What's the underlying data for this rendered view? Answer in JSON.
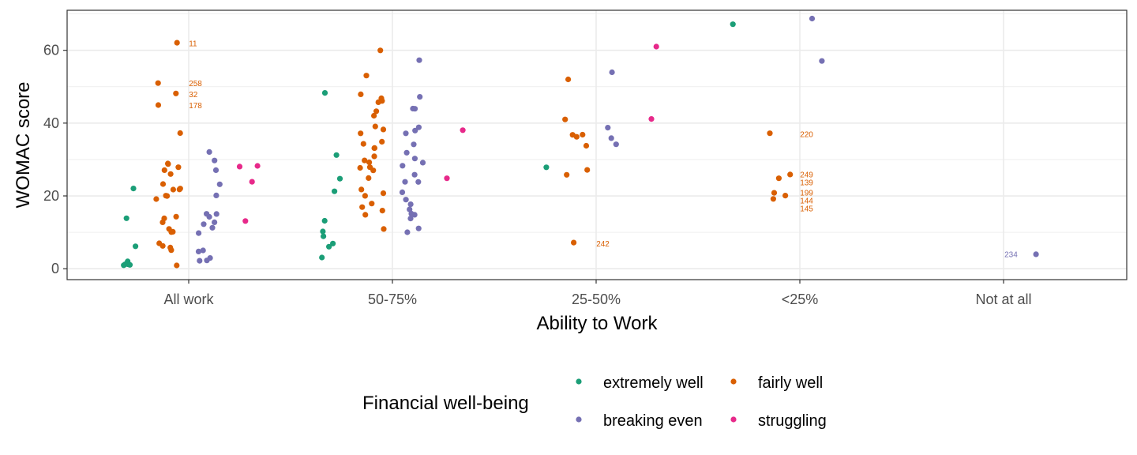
{
  "chart_data": {
    "type": "scatter",
    "xlabel": "Ability to Work",
    "ylabel": "WOMAC score",
    "categories": [
      "All work",
      "50-75%",
      "25-50%",
      "<25%",
      "Not at all"
    ],
    "ylim": [
      -3,
      71
    ],
    "yticks": [
      0,
      20,
      40,
      60
    ],
    "grid": true,
    "legend": {
      "title": "Financial well-being",
      "placement": "bottom"
    },
    "series": [
      {
        "name": "extremely well",
        "color": "#1b9e77",
        "offset": -0.3,
        "points": [
          {
            "x": "All work",
            "y": 22
          },
          {
            "x": "All work",
            "y": 14
          },
          {
            "x": "All work",
            "y": 6
          },
          {
            "x": "All work",
            "y": 2
          },
          {
            "x": "All work",
            "y": 1.5
          },
          {
            "x": "All work",
            "y": 1
          },
          {
            "x": "All work",
            "y": 1
          },
          {
            "x": "All work",
            "y": 1
          },
          {
            "x": "50-75%",
            "y": 48
          },
          {
            "x": "50-75%",
            "y": 31
          },
          {
            "x": "50-75%",
            "y": 25
          },
          {
            "x": "50-75%",
            "y": 21
          },
          {
            "x": "50-75%",
            "y": 13
          },
          {
            "x": "50-75%",
            "y": 10
          },
          {
            "x": "50-75%",
            "y": 9
          },
          {
            "x": "50-75%",
            "y": 7
          },
          {
            "x": "50-75%",
            "y": 6
          },
          {
            "x": "50-75%",
            "y": 3
          },
          {
            "x": "25-50%",
            "y": 28
          },
          {
            "x": "<25%",
            "y": 67
          }
        ]
      },
      {
        "name": "fairly well",
        "color": "#d95f02",
        "offset": -0.1,
        "points": [
          {
            "x": "All work",
            "y": 62,
            "label": "11"
          },
          {
            "x": "All work",
            "y": 51,
            "label": "258"
          },
          {
            "x": "All work",
            "y": 48,
            "label": "32"
          },
          {
            "x": "All work",
            "y": 45,
            "label": "178"
          },
          {
            "x": "All work",
            "y": 37
          },
          {
            "x": "All work",
            "y": 29
          },
          {
            "x": "All work",
            "y": 29
          },
          {
            "x": "All work",
            "y": 28
          },
          {
            "x": "All work",
            "y": 27
          },
          {
            "x": "All work",
            "y": 26
          },
          {
            "x": "All work",
            "y": 23
          },
          {
            "x": "All work",
            "y": 22
          },
          {
            "x": "All work",
            "y": 22
          },
          {
            "x": "All work",
            "y": 22
          },
          {
            "x": "All work",
            "y": 20
          },
          {
            "x": "All work",
            "y": 20
          },
          {
            "x": "All work",
            "y": 19
          },
          {
            "x": "All work",
            "y": 14
          },
          {
            "x": "All work",
            "y": 14
          },
          {
            "x": "All work",
            "y": 13
          },
          {
            "x": "All work",
            "y": 11
          },
          {
            "x": "All work",
            "y": 10
          },
          {
            "x": "All work",
            "y": 10
          },
          {
            "x": "All work",
            "y": 7
          },
          {
            "x": "All work",
            "y": 6
          },
          {
            "x": "All work",
            "y": 6
          },
          {
            "x": "All work",
            "y": 5
          },
          {
            "x": "All work",
            "y": 1
          },
          {
            "x": "50-75%",
            "y": 60
          },
          {
            "x": "50-75%",
            "y": 53
          },
          {
            "x": "50-75%",
            "y": 48
          },
          {
            "x": "50-75%",
            "y": 47
          },
          {
            "x": "50-75%",
            "y": 46
          },
          {
            "x": "50-75%",
            "y": 46
          },
          {
            "x": "50-75%",
            "y": 43
          },
          {
            "x": "50-75%",
            "y": 42
          },
          {
            "x": "50-75%",
            "y": 39
          },
          {
            "x": "50-75%",
            "y": 38
          },
          {
            "x": "50-75%",
            "y": 37
          },
          {
            "x": "50-75%",
            "y": 35
          },
          {
            "x": "50-75%",
            "y": 34
          },
          {
            "x": "50-75%",
            "y": 33
          },
          {
            "x": "50-75%",
            "y": 33
          },
          {
            "x": "50-75%",
            "y": 31
          },
          {
            "x": "50-75%",
            "y": 30
          },
          {
            "x": "50-75%",
            "y": 29
          },
          {
            "x": "50-75%",
            "y": 28
          },
          {
            "x": "50-75%",
            "y": 28
          },
          {
            "x": "50-75%",
            "y": 27
          },
          {
            "x": "50-75%",
            "y": 25
          },
          {
            "x": "50-75%",
            "y": 22
          },
          {
            "x": "50-75%",
            "y": 21
          },
          {
            "x": "50-75%",
            "y": 20
          },
          {
            "x": "50-75%",
            "y": 18
          },
          {
            "x": "50-75%",
            "y": 17
          },
          {
            "x": "50-75%",
            "y": 16
          },
          {
            "x": "50-75%",
            "y": 15
          },
          {
            "x": "50-75%",
            "y": 11
          },
          {
            "x": "25-50%",
            "y": 52
          },
          {
            "x": "25-50%",
            "y": 41
          },
          {
            "x": "25-50%",
            "y": 37
          },
          {
            "x": "25-50%",
            "y": 37
          },
          {
            "x": "25-50%",
            "y": 36
          },
          {
            "x": "25-50%",
            "y": 34
          },
          {
            "x": "25-50%",
            "y": 27
          },
          {
            "x": "25-50%",
            "y": 26
          },
          {
            "x": "25-50%",
            "y": 7,
            "label": "242"
          },
          {
            "x": "<25%",
            "y": 37,
            "label": "220"
          },
          {
            "x": "<25%",
            "y": 26,
            "label": "249"
          },
          {
            "x": "<25%",
            "y": 25,
            "label": "139"
          },
          {
            "x": "<25%",
            "y": 21,
            "label": "199"
          },
          {
            "x": "<25%",
            "y": 20,
            "label": "144"
          },
          {
            "x": "<25%",
            "y": 19,
            "label": "145"
          }
        ]
      },
      {
        "name": "breaking even",
        "color": "#7570b3",
        "offset": 0.1,
        "points": [
          {
            "x": "All work",
            "y": 32
          },
          {
            "x": "All work",
            "y": 30
          },
          {
            "x": "All work",
            "y": 27
          },
          {
            "x": "All work",
            "y": 23
          },
          {
            "x": "All work",
            "y": 20
          },
          {
            "x": "All work",
            "y": 15
          },
          {
            "x": "All work",
            "y": 15
          },
          {
            "x": "All work",
            "y": 14
          },
          {
            "x": "All work",
            "y": 13
          },
          {
            "x": "All work",
            "y": 12
          },
          {
            "x": "All work",
            "y": 11
          },
          {
            "x": "All work",
            "y": 10
          },
          {
            "x": "All work",
            "y": 5
          },
          {
            "x": "All work",
            "y": 5
          },
          {
            "x": "All work",
            "y": 3
          },
          {
            "x": "All work",
            "y": 2
          },
          {
            "x": "All work",
            "y": 2
          },
          {
            "x": "50-75%",
            "y": 57
          },
          {
            "x": "50-75%",
            "y": 47
          },
          {
            "x": "50-75%",
            "y": 44
          },
          {
            "x": "50-75%",
            "y": 44
          },
          {
            "x": "50-75%",
            "y": 39
          },
          {
            "x": "50-75%",
            "y": 38
          },
          {
            "x": "50-75%",
            "y": 37
          },
          {
            "x": "50-75%",
            "y": 34
          },
          {
            "x": "50-75%",
            "y": 32
          },
          {
            "x": "50-75%",
            "y": 30
          },
          {
            "x": "50-75%",
            "y": 29
          },
          {
            "x": "50-75%",
            "y": 28
          },
          {
            "x": "50-75%",
            "y": 26
          },
          {
            "x": "50-75%",
            "y": 24
          },
          {
            "x": "50-75%",
            "y": 24
          },
          {
            "x": "50-75%",
            "y": 21
          },
          {
            "x": "50-75%",
            "y": 19
          },
          {
            "x": "50-75%",
            "y": 18
          },
          {
            "x": "50-75%",
            "y": 16
          },
          {
            "x": "50-75%",
            "y": 15
          },
          {
            "x": "50-75%",
            "y": 15
          },
          {
            "x": "50-75%",
            "y": 14
          },
          {
            "x": "50-75%",
            "y": 11
          },
          {
            "x": "50-75%",
            "y": 10
          },
          {
            "x": "25-50%",
            "y": 54
          },
          {
            "x": "25-50%",
            "y": 39
          },
          {
            "x": "25-50%",
            "y": 36
          },
          {
            "x": "25-50%",
            "y": 34
          },
          {
            "x": "<25%",
            "y": 69
          },
          {
            "x": "<25%",
            "y": 57
          },
          {
            "x": "Not at all",
            "y": 4,
            "label": "234",
            "label_side": "left"
          }
        ]
      },
      {
        "name": "struggling",
        "color": "#e7298a",
        "offset": 0.3,
        "points": [
          {
            "x": "All work",
            "y": 28
          },
          {
            "x": "All work",
            "y": 28
          },
          {
            "x": "All work",
            "y": 24
          },
          {
            "x": "All work",
            "y": 13
          },
          {
            "x": "50-75%",
            "y": 38
          },
          {
            "x": "50-75%",
            "y": 25
          },
          {
            "x": "25-50%",
            "y": 61
          },
          {
            "x": "25-50%",
            "y": 41
          }
        ]
      }
    ]
  }
}
